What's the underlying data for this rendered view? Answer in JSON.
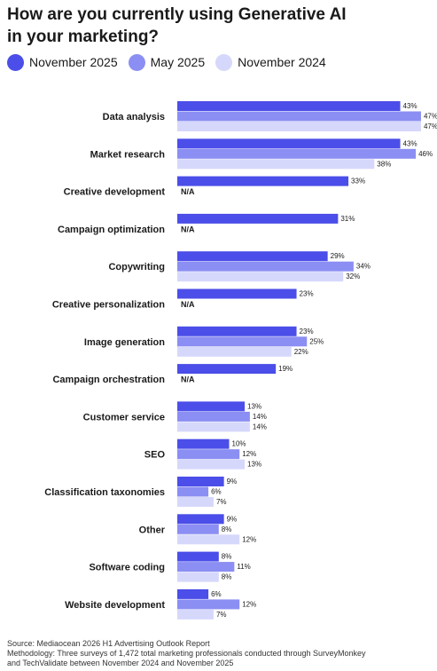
{
  "title_line1": "How are you currently using Generative AI",
  "title_line2": "in your marketing?",
  "legend": [
    {
      "label": "November 2025",
      "color": "#4b4ee8"
    },
    {
      "label": "May 2025",
      "color": "#8b8ef2"
    },
    {
      "label": "November 2024",
      "color": "#d6d8fb"
    }
  ],
  "footer": {
    "source": "Source: Mediaocean 2026 H1 Advertising Outlook Report",
    "methodology_line1": "Methodology: Three surveys of 1,472 total marketing professionals conducted through SurveyMonkey",
    "methodology_line2": "and TechValidate between November 2024 and November 2025"
  },
  "chart_data": {
    "type": "bar",
    "orientation": "horizontal",
    "categories": [
      "Data analysis",
      "Market research",
      "Creative development",
      "Campaign optimization",
      "Copywriting",
      "Creative personalization",
      "Image generation",
      "Campaign orchestration",
      "Customer service",
      "SEO",
      "Classification taxonomies",
      "Other",
      "Software coding",
      "Website development"
    ],
    "series": [
      {
        "name": "November 2025",
        "color": "#4b4ee8",
        "values": [
          43,
          43,
          33,
          31,
          29,
          23,
          23,
          19,
          13,
          10,
          9,
          9,
          8,
          6
        ]
      },
      {
        "name": "May 2025",
        "color": "#8b8ef2",
        "values": [
          47,
          46,
          null,
          null,
          34,
          null,
          25,
          null,
          14,
          12,
          6,
          8,
          11,
          12
        ]
      },
      {
        "name": "November 2024",
        "color": "#d6d8fb",
        "values": [
          47,
          38,
          null,
          null,
          32,
          null,
          22,
          null,
          14,
          13,
          7,
          12,
          8,
          7
        ]
      }
    ],
    "value_suffix": "%",
    "na_label": "N/A",
    "xlim": [
      0,
      47
    ],
    "grid": false,
    "legend_position": "top"
  }
}
